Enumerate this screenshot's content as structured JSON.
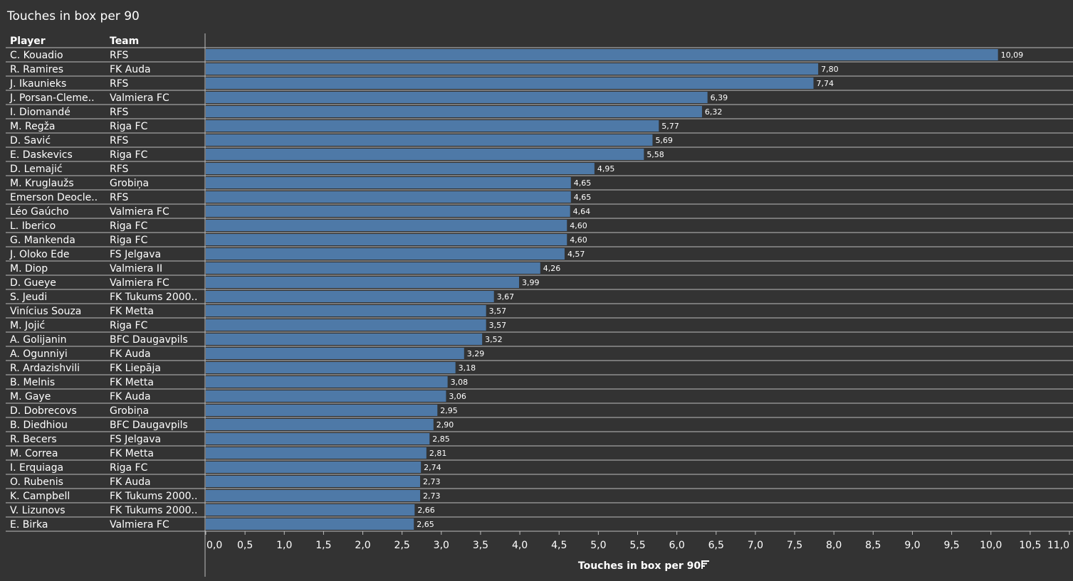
{
  "title": "Touches in box per 90",
  "columns": {
    "player": "Player",
    "team": "Team"
  },
  "colors": {
    "background": "#333333",
    "bar": "#4e79a7",
    "text": "#ffffff",
    "rule": "#bdbdbd"
  },
  "sort_icon": "sort-descending-icon",
  "chart_data": {
    "type": "bar",
    "orientation": "horizontal",
    "title": "Touches in box per 90",
    "xlabel": "Touches in box per 90",
    "xlim": [
      0,
      11
    ],
    "xticks": [
      0,
      0.5,
      1,
      1.5,
      2,
      2.5,
      3,
      3.5,
      4,
      4.5,
      5,
      5.5,
      6,
      6.5,
      7,
      7.5,
      8,
      8.5,
      9,
      9.5,
      10,
      10.5,
      11
    ],
    "decimal_separator": ",",
    "rows": [
      {
        "player": "C. Kouadio",
        "team": "RFS",
        "value": 10.09
      },
      {
        "player": "R. Ramires",
        "team": "FK Auda",
        "value": 7.8
      },
      {
        "player": "J. Ikaunieks",
        "team": "RFS",
        "value": 7.74
      },
      {
        "player": "J. Porsan-Cleme..",
        "team": "Valmiera FC",
        "value": 6.39
      },
      {
        "player": "I. Diomandé",
        "team": "RFS",
        "value": 6.32
      },
      {
        "player": "M. Regža",
        "team": "Riga FC",
        "value": 5.77
      },
      {
        "player": "D. Savić",
        "team": "RFS",
        "value": 5.69
      },
      {
        "player": "E. Daskevics",
        "team": "Riga FC",
        "value": 5.58
      },
      {
        "player": "D. Lemajić",
        "team": "RFS",
        "value": 4.95
      },
      {
        "player": "M. Kruglaužs",
        "team": "Grobiņa",
        "value": 4.65
      },
      {
        "player": "Emerson Deocle..",
        "team": "RFS",
        "value": 4.65
      },
      {
        "player": "Léo Gaúcho",
        "team": "Valmiera FC",
        "value": 4.64
      },
      {
        "player": "L. Iberico",
        "team": "Riga FC",
        "value": 4.6
      },
      {
        "player": "G. Mankenda",
        "team": "Riga FC",
        "value": 4.6
      },
      {
        "player": "J. Oloko Ede",
        "team": "FS Jelgava",
        "value": 4.57
      },
      {
        "player": "M. Diop",
        "team": "Valmiera II",
        "value": 4.26
      },
      {
        "player": "D. Gueye",
        "team": "Valmiera FC",
        "value": 3.99
      },
      {
        "player": "S. Jeudi",
        "team": "FK Tukums 2000..",
        "value": 3.67
      },
      {
        "player": "Vinícius Souza",
        "team": "FK Metta",
        "value": 3.57
      },
      {
        "player": "M. Jojić",
        "team": "Riga FC",
        "value": 3.57
      },
      {
        "player": "A. Golijanin",
        "team": "BFC Daugavpils",
        "value": 3.52
      },
      {
        "player": "A. Ogunniyi",
        "team": "FK Auda",
        "value": 3.29
      },
      {
        "player": "R. Ardazishvili",
        "team": "FK Liepāja",
        "value": 3.18
      },
      {
        "player": "B. Melnis",
        "team": "FK Metta",
        "value": 3.08
      },
      {
        "player": "M. Gaye",
        "team": "FK Auda",
        "value": 3.06
      },
      {
        "player": "D. Dobrecovs",
        "team": "Grobiņa",
        "value": 2.95
      },
      {
        "player": "B. Diedhiou",
        "team": "BFC Daugavpils",
        "value": 2.9
      },
      {
        "player": "R. Becers",
        "team": "FS Jelgava",
        "value": 2.85
      },
      {
        "player": "M. Correa",
        "team": "FK Metta",
        "value": 2.81
      },
      {
        "player": "I. Erquiaga",
        "team": "Riga FC",
        "value": 2.74
      },
      {
        "player": "O. Rubenis",
        "team": "FK Auda",
        "value": 2.73
      },
      {
        "player": "K. Campbell",
        "team": "FK Tukums 2000..",
        "value": 2.73
      },
      {
        "player": "V. Lizunovs",
        "team": "FK Tukums 2000..",
        "value": 2.66
      },
      {
        "player": "E. Birka",
        "team": "Valmiera FC",
        "value": 2.65
      }
    ]
  }
}
